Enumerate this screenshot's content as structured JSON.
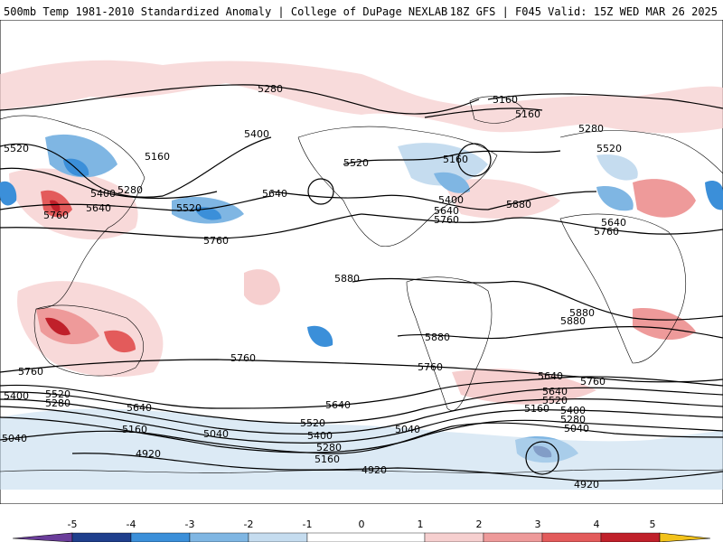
{
  "header": {
    "title_left": "500mb Temp 1981-2010 Standardized Anomaly | College of DuPage NEXLAB",
    "title_right": "18Z GFS | F045 Valid: 15Z WED MAR 26 2025"
  },
  "colors": {
    "coast": "#000000",
    "contour": "#000000",
    "neg5": "#6a3d9a",
    "neg4": "#1f3f8c",
    "neg3": "#3b8fd9",
    "neg2": "#7fb6e3",
    "neg1": "#c5dcef",
    "zero": "#ffffff",
    "pos1": "#f6cfcf",
    "pos2": "#ee9a9a",
    "pos3": "#e35b5b",
    "pos4": "#c0202a",
    "pos5": "#7e0a10",
    "over": "#f2c21a"
  },
  "colorbar": {
    "ticks": [
      "-5",
      "-4",
      "-3",
      "-2",
      "-1",
      "0",
      "1",
      "2",
      "3",
      "4",
      "5"
    ]
  },
  "contour_labels": [
    {
      "text": "5280"
    },
    {
      "text": "5160"
    },
    {
      "text": "5160"
    },
    {
      "text": "5520"
    },
    {
      "text": "5400"
    },
    {
      "text": "5160"
    },
    {
      "text": "5280"
    },
    {
      "text": "5400"
    },
    {
      "text": "5640"
    },
    {
      "text": "5520"
    },
    {
      "text": "5760"
    },
    {
      "text": "5640"
    },
    {
      "text": "5760"
    },
    {
      "text": "5520"
    },
    {
      "text": "5160"
    },
    {
      "text": "5400"
    },
    {
      "text": "5640"
    },
    {
      "text": "5760"
    },
    {
      "text": "5280"
    },
    {
      "text": "5520"
    },
    {
      "text": "5880"
    },
    {
      "text": "5640"
    },
    {
      "text": "5760"
    },
    {
      "text": "5880"
    },
    {
      "text": "5880"
    },
    {
      "text": "5880"
    },
    {
      "text": "5880"
    },
    {
      "text": "5760"
    },
    {
      "text": "5760"
    },
    {
      "text": "5760"
    },
    {
      "text": "5640"
    },
    {
      "text": "5640"
    },
    {
      "text": "5520"
    },
    {
      "text": "5400"
    },
    {
      "text": "5280"
    },
    {
      "text": "5040"
    },
    {
      "text": "5160"
    },
    {
      "text": "5040"
    },
    {
      "text": "5520"
    },
    {
      "text": "5400"
    },
    {
      "text": "5280"
    },
    {
      "text": "5160"
    },
    {
      "text": "5040"
    },
    {
      "text": "5640"
    },
    {
      "text": "5520"
    },
    {
      "text": "5400"
    },
    {
      "text": "5280"
    },
    {
      "text": "5160"
    },
    {
      "text": "5040"
    },
    {
      "text": "4920"
    },
    {
      "text": "4920"
    },
    {
      "text": "4920"
    },
    {
      "text": "5640"
    },
    {
      "text": "5760"
    }
  ]
}
